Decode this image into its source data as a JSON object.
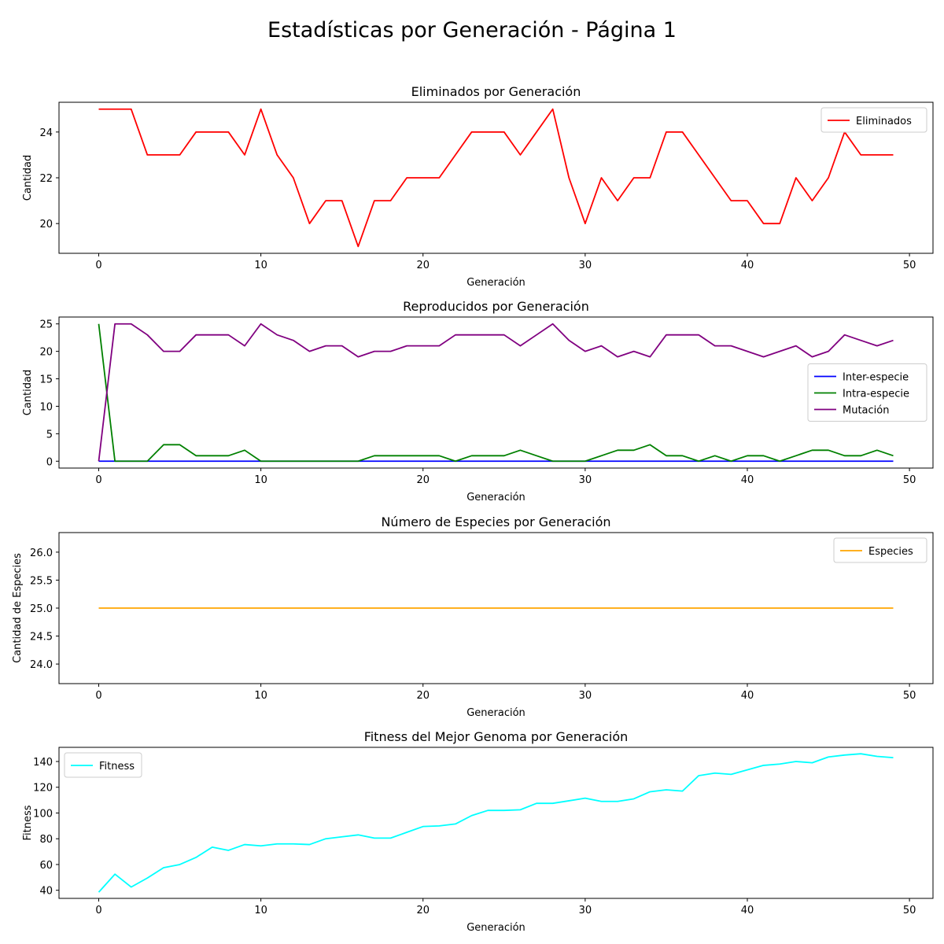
{
  "figure": {
    "suptitle": "Estadísticas por Generación - Página 1"
  },
  "chart_data": [
    {
      "type": "line",
      "title": "Eliminados por Generación",
      "xlabel": "Generación",
      "ylabel": "Cantidad",
      "xlim": [
        -2.45,
        51.45
      ],
      "ylim": [
        18.7,
        25.3
      ],
      "xticks": [
        0,
        10,
        20,
        30,
        40,
        50
      ],
      "yticks": [
        20,
        22,
        24
      ],
      "legend": "upper right",
      "series": [
        {
          "name": "Eliminados",
          "color": "#ff0000",
          "x": [
            0,
            1,
            2,
            3,
            4,
            5,
            6,
            7,
            8,
            9,
            10,
            11,
            12,
            13,
            14,
            15,
            16,
            17,
            18,
            19,
            20,
            21,
            22,
            23,
            24,
            25,
            26,
            27,
            28,
            29,
            30,
            31,
            32,
            33,
            34,
            35,
            36,
            37,
            38,
            39,
            40,
            41,
            42,
            43,
            44,
            45,
            46,
            47,
            48,
            49
          ],
          "y": [
            25,
            25,
            25,
            23,
            23,
            23,
            24,
            24,
            24,
            23,
            25,
            23,
            22,
            20,
            21,
            21,
            19,
            21,
            21,
            22,
            22,
            22,
            23,
            24,
            24,
            24,
            23,
            24,
            25,
            22,
            20,
            22,
            21,
            22,
            22,
            24,
            24,
            23,
            22,
            21,
            21,
            20,
            20,
            22,
            21,
            22,
            24,
            23,
            23,
            23
          ]
        }
      ]
    },
    {
      "type": "line",
      "title": "Reproducidos por Generación",
      "xlabel": "Generación",
      "ylabel": "Cantidad",
      "xlim": [
        -2.45,
        51.45
      ],
      "ylim": [
        -1.25,
        26.25
      ],
      "xticks": [
        0,
        10,
        20,
        30,
        40,
        50
      ],
      "yticks": [
        0,
        5,
        10,
        15,
        20,
        25
      ],
      "legend": "center right",
      "series": [
        {
          "name": "Inter-especie",
          "color": "#0000ff",
          "x": [
            0,
            1,
            2,
            3,
            4,
            5,
            6,
            7,
            8,
            9,
            10,
            11,
            12,
            13,
            14,
            15,
            16,
            17,
            18,
            19,
            20,
            21,
            22,
            23,
            24,
            25,
            26,
            27,
            28,
            29,
            30,
            31,
            32,
            33,
            34,
            35,
            36,
            37,
            38,
            39,
            40,
            41,
            42,
            43,
            44,
            45,
            46,
            47,
            48,
            49
          ],
          "y": [
            0,
            0,
            0,
            0,
            0,
            0,
            0,
            0,
            0,
            0,
            0,
            0,
            0,
            0,
            0,
            0,
            0,
            0,
            0,
            0,
            0,
            0,
            0,
            0,
            0,
            0,
            0,
            0,
            0,
            0,
            0,
            0,
            0,
            0,
            0,
            0,
            0,
            0,
            0,
            0,
            0,
            0,
            0,
            0,
            0,
            0,
            0,
            0,
            0,
            0
          ]
        },
        {
          "name": "Intra-especie",
          "color": "#008000",
          "x": [
            0,
            1,
            2,
            3,
            4,
            5,
            6,
            7,
            8,
            9,
            10,
            11,
            12,
            13,
            14,
            15,
            16,
            17,
            18,
            19,
            20,
            21,
            22,
            23,
            24,
            25,
            26,
            27,
            28,
            29,
            30,
            31,
            32,
            33,
            34,
            35,
            36,
            37,
            38,
            39,
            40,
            41,
            42,
            43,
            44,
            45,
            46,
            47,
            48,
            49
          ],
          "y": [
            25,
            0,
            0,
            0,
            3,
            3,
            1,
            1,
            1,
            2,
            0,
            0,
            0,
            0,
            0,
            0,
            0,
            1,
            1,
            1,
            1,
            1,
            0,
            1,
            1,
            1,
            2,
            1,
            0,
            0,
            0,
            1,
            2,
            2,
            3,
            1,
            1,
            0,
            1,
            0,
            1,
            1,
            0,
            1,
            2,
            2,
            1,
            1,
            2,
            1
          ]
        },
        {
          "name": "Mutación",
          "color": "#800080",
          "x": [
            0,
            1,
            2,
            3,
            4,
            5,
            6,
            7,
            8,
            9,
            10,
            11,
            12,
            13,
            14,
            15,
            16,
            17,
            18,
            19,
            20,
            21,
            22,
            23,
            24,
            25,
            26,
            27,
            28,
            29,
            30,
            31,
            32,
            33,
            34,
            35,
            36,
            37,
            38,
            39,
            40,
            41,
            42,
            43,
            44,
            45,
            46,
            47,
            48,
            49
          ],
          "y": [
            0,
            25,
            25,
            23,
            20,
            20,
            23,
            23,
            23,
            21,
            25,
            23,
            22,
            20,
            21,
            21,
            19,
            20,
            20,
            21,
            21,
            21,
            23,
            23,
            23,
            23,
            21,
            23,
            25,
            22,
            20,
            21,
            19,
            20,
            19,
            23,
            23,
            23,
            21,
            21,
            20,
            19,
            20,
            21,
            19,
            20,
            23,
            22,
            21,
            22
          ]
        }
      ]
    },
    {
      "type": "line",
      "title": "Número de Especies por Generación",
      "xlabel": "Generación",
      "ylabel": "Cantidad de Especies",
      "xlim": [
        -2.45,
        51.45
      ],
      "ylim": [
        23.65,
        26.35
      ],
      "xticks": [
        0,
        10,
        20,
        30,
        40,
        50
      ],
      "yticks": [
        24.0,
        24.5,
        25.0,
        25.5,
        26.0
      ],
      "ytick_labels": [
        "24.0",
        "24.5",
        "25.0",
        "25.5",
        "26.0"
      ],
      "legend": "upper right",
      "series": [
        {
          "name": "Especies",
          "color": "#ffa500",
          "x": [
            0,
            1,
            2,
            3,
            4,
            5,
            6,
            7,
            8,
            9,
            10,
            11,
            12,
            13,
            14,
            15,
            16,
            17,
            18,
            19,
            20,
            21,
            22,
            23,
            24,
            25,
            26,
            27,
            28,
            29,
            30,
            31,
            32,
            33,
            34,
            35,
            36,
            37,
            38,
            39,
            40,
            41,
            42,
            43,
            44,
            45,
            46,
            47,
            48,
            49
          ],
          "y": [
            25,
            25,
            25,
            25,
            25,
            25,
            25,
            25,
            25,
            25,
            25,
            25,
            25,
            25,
            25,
            25,
            25,
            25,
            25,
            25,
            25,
            25,
            25,
            25,
            25,
            25,
            25,
            25,
            25,
            25,
            25,
            25,
            25,
            25,
            25,
            25,
            25,
            25,
            25,
            25,
            25,
            25,
            25,
            25,
            25,
            25,
            25,
            25,
            25,
            25
          ]
        }
      ]
    },
    {
      "type": "line",
      "title": "Fitness del Mejor Genoma por Generación",
      "xlabel": "Generación",
      "ylabel": "Fitness",
      "xlim": [
        -2.45,
        51.45
      ],
      "ylim": [
        33.7,
        151
      ],
      "xticks": [
        0,
        10,
        20,
        30,
        40,
        50
      ],
      "yticks": [
        40,
        60,
        80,
        100,
        120,
        140
      ],
      "legend": "upper left",
      "series": [
        {
          "name": "Fitness",
          "color": "#00ffff",
          "x": [
            0,
            1,
            2,
            3,
            4,
            5,
            6,
            7,
            8,
            9,
            10,
            11,
            12,
            13,
            14,
            15,
            16,
            17,
            18,
            19,
            20,
            21,
            22,
            23,
            24,
            25,
            26,
            27,
            28,
            29,
            30,
            31,
            32,
            33,
            34,
            35,
            36,
            37,
            38,
            39,
            40,
            41,
            42,
            43,
            44,
            45,
            46,
            47,
            48,
            49
          ],
          "y": [
            38.5,
            52.5,
            42.5,
            49.5,
            57.5,
            60,
            65.5,
            73.5,
            71,
            75.5,
            74.5,
            76,
            76,
            75.5,
            80,
            81.5,
            83,
            80.5,
            80.5,
            85,
            89.5,
            90,
            91.5,
            98,
            102,
            102,
            102.5,
            107.5,
            107.5,
            109.5,
            111.5,
            109,
            109,
            111,
            116.5,
            118,
            117,
            129,
            131,
            130,
            133.5,
            137,
            138,
            140,
            139,
            143.5,
            145,
            146,
            144,
            143
          ]
        }
      ]
    }
  ]
}
